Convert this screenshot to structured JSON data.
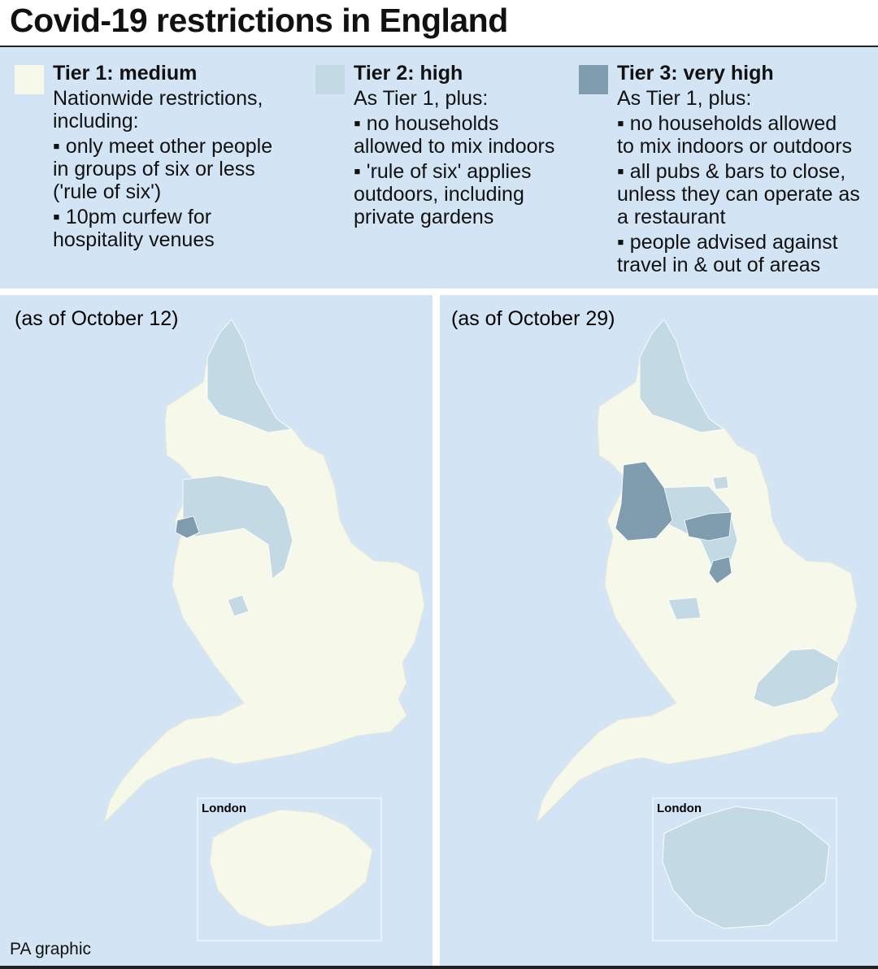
{
  "title": "Covid-19 restrictions in England",
  "legend": [
    {
      "label": "Tier 1: medium",
      "color": "#f6f8ea",
      "intro": [
        "Nationwide restrictions,",
        "including:"
      ],
      "items": [
        [
          "▪ only meet other people",
          "in groups of six or less",
          "('rule of six')"
        ],
        [
          "▪ 10pm curfew for",
          "hospitality venues"
        ]
      ]
    },
    {
      "label": "Tier 2: high",
      "color": "#c3d9e3",
      "intro": [
        "As Tier 1, plus:"
      ],
      "items": [
        [
          "▪ no households",
          "allowed to mix indoors"
        ],
        [
          "▪ 'rule of six' applies",
          "outdoors, including",
          "private gardens"
        ]
      ]
    },
    {
      "label": "Tier 3: very high",
      "color": "#7f9dae",
      "intro": [
        "As Tier 1, plus:"
      ],
      "items": [
        [
          "▪ no households allowed",
          "to mix indoors or outdoors"
        ],
        [
          "▪ all pubs & bars to close,",
          "unless they can operate as",
          "a restaurant"
        ],
        [
          "▪ people advised against",
          "travel in & out of areas"
        ]
      ]
    }
  ],
  "maps": [
    {
      "caption": "(as of October 12)",
      "inset_label": "London"
    },
    {
      "caption": "(as of October 29)",
      "inset_label": "London"
    }
  ],
  "credit": "PA graphic"
}
